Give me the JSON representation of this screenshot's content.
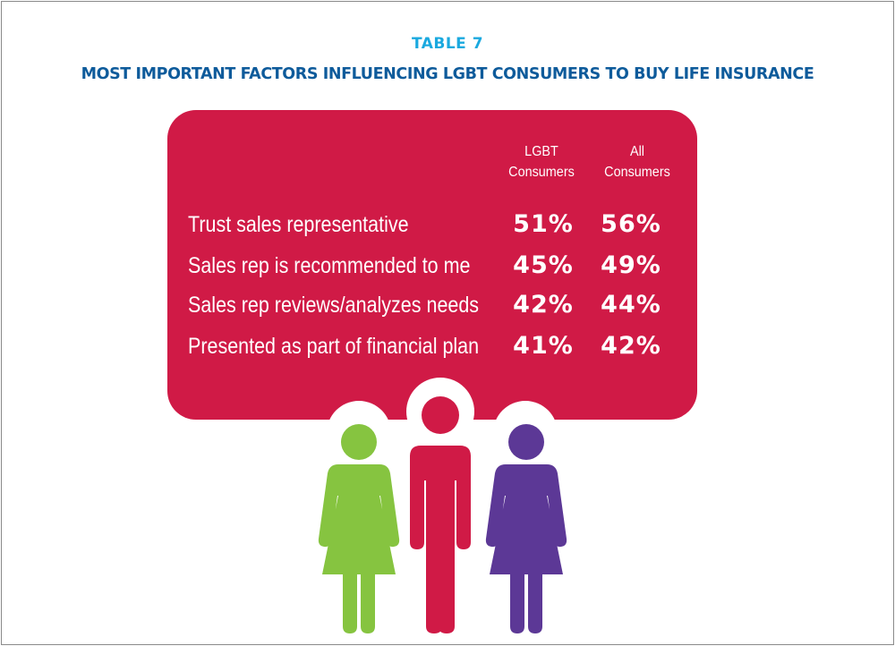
{
  "header": {
    "label": "TABLE 7",
    "title": "MOST IMPORTANT FACTORS INFLUENCING LGBT CONSUMERS TO BUY LIFE INSURANCE"
  },
  "colors": {
    "label": "#1aa9df",
    "title": "#0e5b9b",
    "card": "#d01a46",
    "person_green": "#86c440",
    "person_red": "#d01a46",
    "person_purple": "#5c3896"
  },
  "icons": [
    "female-person-icon",
    "male-person-icon",
    "female-person-icon"
  ],
  "chart_data": {
    "type": "table",
    "columns": [
      {
        "line1": "LGBT",
        "line2": "Consumers"
      },
      {
        "line1": "All",
        "line2": "Consumers"
      }
    ],
    "rows": [
      {
        "label": "Trust sales representative",
        "lgbt": "51%",
        "all": "56%"
      },
      {
        "label": "Sales rep is recommended to me",
        "lgbt": "45%",
        "all": "49%"
      },
      {
        "label": "Sales rep reviews/analyzes needs",
        "lgbt": "42%",
        "all": "44%"
      },
      {
        "label": "Presented as part of financial plan",
        "lgbt": "41%",
        "all": "42%"
      }
    ]
  }
}
